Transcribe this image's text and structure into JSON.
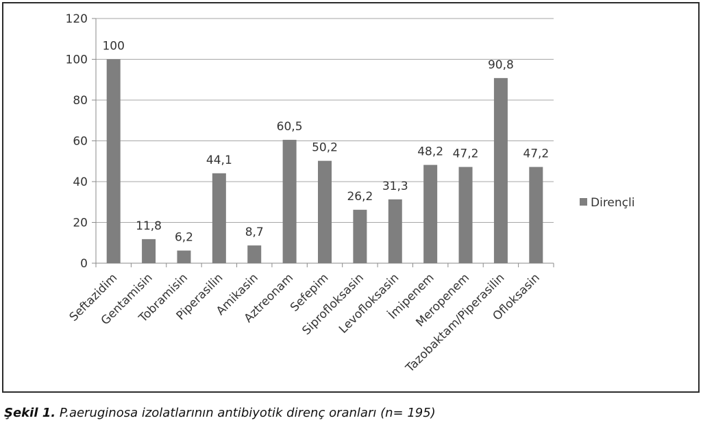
{
  "chart_data": {
    "type": "bar",
    "categories": [
      "Seftazidim",
      "Gentamisin",
      "Tobramisin",
      "Piperasilin",
      "Amikasin",
      "Aztreonam",
      "Sefepim",
      "Siprofloksasin",
      "Levofloksasin",
      "İmipenem",
      "Meropenem",
      "Tazobaktam/Piperasilin",
      "Ofloksasin"
    ],
    "series": [
      {
        "name": "Dirençli",
        "values": [
          100,
          11.8,
          6.2,
          44.1,
          8.7,
          60.5,
          50.2,
          26.2,
          31.3,
          48.2,
          47.2,
          90.8,
          47.2
        ]
      }
    ],
    "data_labels": [
      "100",
      "11,8",
      "6,2",
      "44,1",
      "8,7",
      "60,5",
      "50,2",
      "26,2",
      "31,3",
      "48,2",
      "47,2",
      "90,8",
      "47,2"
    ],
    "y_ticks": [
      "0",
      "20",
      "40",
      "60",
      "80",
      "100",
      "120"
    ],
    "ylim": [
      0,
      120
    ],
    "grid": true,
    "legend_position": "right",
    "bar_color": "#7f7f7f",
    "title": "",
    "xlabel": "",
    "ylabel": ""
  },
  "caption": {
    "figure_label": "Şekil 1.",
    "text": " P.aeruginosa izolatlarının antibiyotik direnç oranları (n= 195)"
  }
}
